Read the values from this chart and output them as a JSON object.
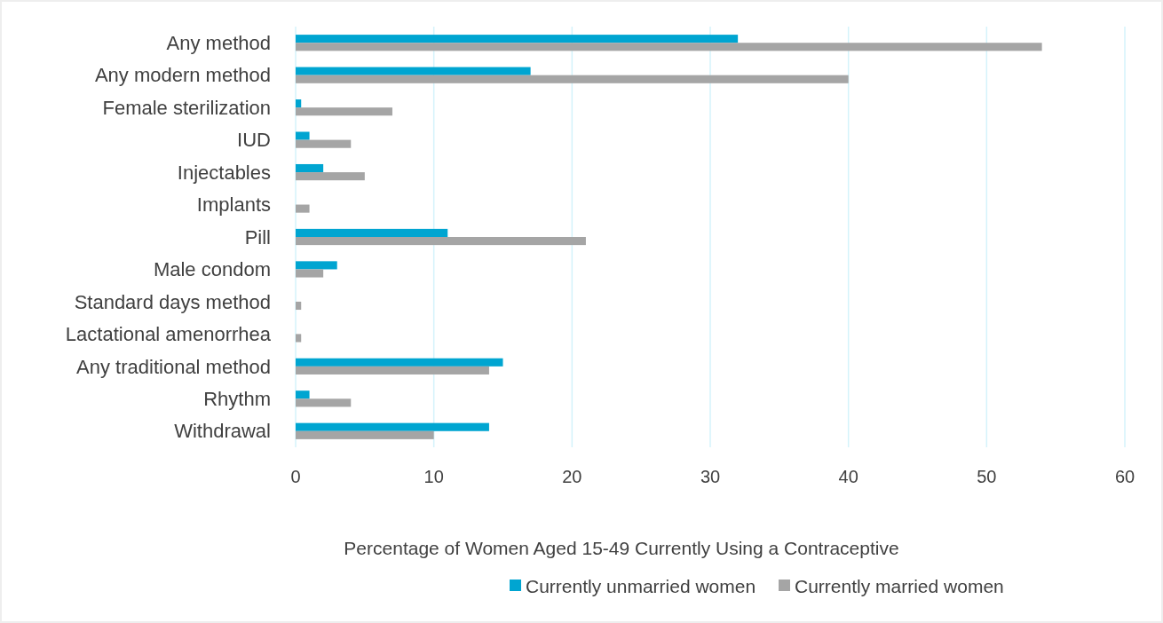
{
  "chart_data": {
    "type": "bar",
    "orientation": "horizontal",
    "xlabel": "Percentage of Women Aged 15-49 Currently Using a Contraceptive",
    "categories": [
      "Any method",
      "Any modern method",
      "Female sterilization",
      "IUD",
      "Injectables",
      "Implants",
      "Pill",
      "Male condom",
      "Standard days method",
      "Lactational amenorrhea",
      "Any traditional method",
      "Rhythm",
      "Withdrawal"
    ],
    "series": [
      {
        "name": "Currently unmarried women",
        "color": "#00a5d1",
        "values": [
          32,
          17,
          0.4,
          1,
          2,
          0,
          11,
          3,
          0,
          0,
          15,
          1,
          14
        ]
      },
      {
        "name": "Currently married women",
        "color": "#a5a5a5",
        "values": [
          54,
          40,
          7,
          4,
          5,
          1,
          21,
          2,
          0.4,
          0.4,
          14,
          4,
          10
        ]
      }
    ],
    "xlim": [
      0,
      60
    ],
    "xticks": [
      0,
      10,
      20,
      30,
      40,
      50,
      60
    ],
    "grid": "x",
    "legend": "bottom"
  }
}
